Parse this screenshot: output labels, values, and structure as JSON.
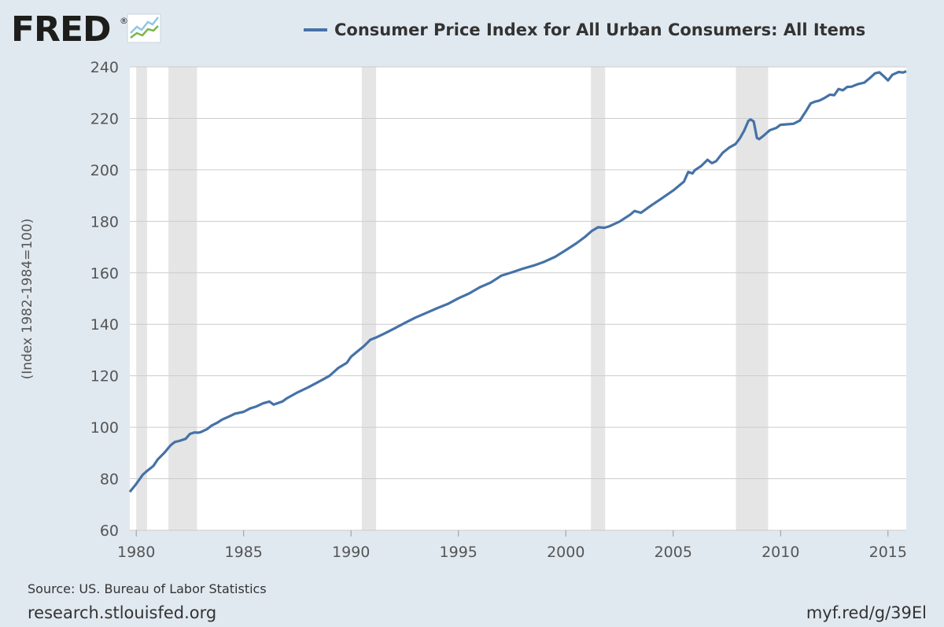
{
  "logo": {
    "text": "FRED",
    "registered": "®",
    "icon": "fred-chart-logo-icon"
  },
  "chart_data": {
    "type": "line",
    "title": "",
    "legend": [
      "Consumer Price Index for All Urban Consumers: All Items"
    ],
    "legend_placement": "top-center",
    "xlabel": "",
    "ylabel": "(Index 1982-1984=100)",
    "xlim": [
      1979.7,
      2015.85
    ],
    "ylim": [
      60,
      240
    ],
    "x_ticks": [
      "1980",
      "1985",
      "1990",
      "1995",
      "2000",
      "2005",
      "2010",
      "2015"
    ],
    "y_ticks": [
      "60",
      "80",
      "100",
      "120",
      "140",
      "160",
      "180",
      "200",
      "220",
      "240"
    ],
    "grid": true,
    "colors": {
      "series": "#4572a7",
      "background": "#e1e9f0",
      "plot": "#ffffff",
      "recession": "#e5e5e5",
      "grid": "#cccccc"
    },
    "recessions": [
      [
        1980.0,
        1980.5
      ],
      [
        1981.5,
        1982.83
      ],
      [
        1990.5,
        1991.17
      ],
      [
        2001.17,
        2001.83
      ],
      [
        2007.92,
        2009.42
      ]
    ],
    "series": [
      {
        "name": "Consumer Price Index for All Urban Consumers: All Items",
        "x": [
          1979.7,
          1980.0,
          1980.3,
          1980.5,
          1980.8,
          1981.0,
          1981.3,
          1981.6,
          1981.8,
          1982.0,
          1982.3,
          1982.5,
          1982.7,
          1982.9,
          1983.0,
          1983.3,
          1983.5,
          1983.8,
          1984.0,
          1984.3,
          1984.6,
          1985.0,
          1985.3,
          1985.6,
          1985.9,
          1986.2,
          1986.4,
          1986.8,
          1987.0,
          1987.5,
          1988.0,
          1988.5,
          1989.0,
          1989.4,
          1989.8,
          1990.0,
          1990.3,
          1990.6,
          1990.9,
          1991.2,
          1991.5,
          1992.0,
          1992.5,
          1993.0,
          1993.5,
          1994.0,
          1994.5,
          1995.0,
          1995.5,
          1996.0,
          1996.5,
          1997.0,
          1997.5,
          1998.0,
          1998.5,
          1999.0,
          1999.5,
          2000.0,
          2000.5,
          2000.9,
          2001.2,
          2001.5,
          2001.8,
          2002.0,
          2002.5,
          2003.0,
          2003.2,
          2003.5,
          2003.8,
          2004.0,
          2004.5,
          2005.0,
          2005.5,
          2005.7,
          2005.9,
          2006.0,
          2006.3,
          2006.6,
          2006.8,
          2007.0,
          2007.3,
          2007.6,
          2007.9,
          2008.1,
          2008.3,
          2008.5,
          2008.6,
          2008.75,
          2008.9,
          2009.0,
          2009.2,
          2009.5,
          2009.8,
          2010.0,
          2010.3,
          2010.6,
          2010.9,
          2011.2,
          2011.4,
          2011.6,
          2011.8,
          2012.0,
          2012.3,
          2012.5,
          2012.7,
          2012.9,
          2013.1,
          2013.3,
          2013.6,
          2013.9,
          2014.2,
          2014.4,
          2014.6,
          2014.8,
          2015.0,
          2015.2,
          2015.5,
          2015.7,
          2015.85
        ],
        "values": [
          74.9,
          78.0,
          81.5,
          83.0,
          85.0,
          87.5,
          90.0,
          93.0,
          94.3,
          94.7,
          95.5,
          97.4,
          98.0,
          97.9,
          98.1,
          99.3,
          100.6,
          101.9,
          103.0,
          104.1,
          105.3,
          106.0,
          107.3,
          108.1,
          109.3,
          110.0,
          108.8,
          110.0,
          111.2,
          113.5,
          115.5,
          117.7,
          120.0,
          123.0,
          125.0,
          127.4,
          129.5,
          131.5,
          134.0,
          135.0,
          136.2,
          138.3,
          140.5,
          142.6,
          144.4,
          146.2,
          147.9,
          150.1,
          152.0,
          154.4,
          156.2,
          158.9,
          160.2,
          161.6,
          162.8,
          164.3,
          166.2,
          168.8,
          171.5,
          174.0,
          176.2,
          177.7,
          177.5,
          178.0,
          179.9,
          182.6,
          184.0,
          183.3,
          185.1,
          186.3,
          189.1,
          192.0,
          195.4,
          199.2,
          198.6,
          199.8,
          201.5,
          203.9,
          202.6,
          203.4,
          206.6,
          208.6,
          210.0,
          212.2,
          215.2,
          219.0,
          219.6,
          218.8,
          212.4,
          211.9,
          213.2,
          215.4,
          216.3,
          217.5,
          217.7,
          217.9,
          219.2,
          223.0,
          225.8,
          226.5,
          226.9,
          227.7,
          229.2,
          229.0,
          231.4,
          230.9,
          232.2,
          232.3,
          233.3,
          233.9,
          236.0,
          237.5,
          237.9,
          236.4,
          234.7,
          236.9,
          238.0,
          237.8,
          238.3
        ]
      }
    ]
  },
  "source": "Source: US. Bureau of Labor Statistics",
  "footer_left": "research.stlouisfed.org",
  "footer_right": "myf.red/g/39El"
}
